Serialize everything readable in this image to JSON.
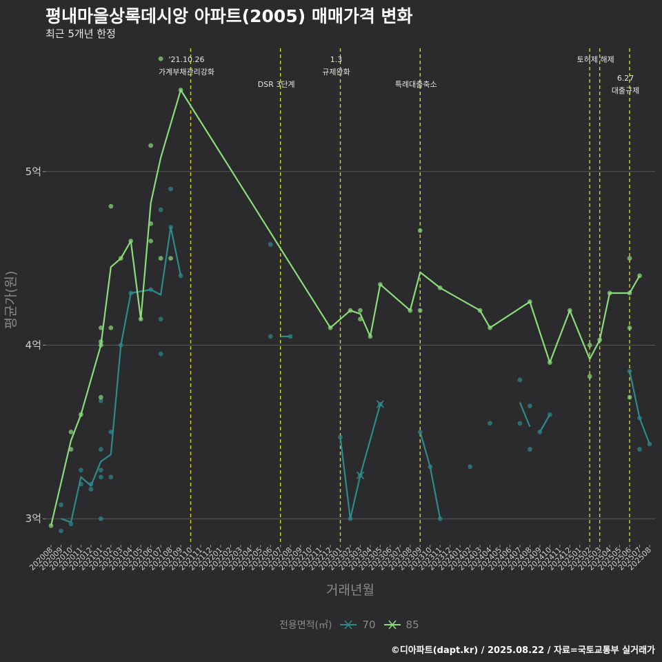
{
  "title": "평내마을상록데시앙 아파트(2005) 매매가격 변화",
  "subtitle": "최근 5개년 한정",
  "caption": "©디아파트(dapt.kr) / 2025.08.22 / 자료=국토교통부 실거래가",
  "legend": {
    "title": "전용면적(㎡)",
    "items": [
      "70",
      "85"
    ]
  },
  "colors": {
    "s70": "#2e8b8b",
    "s85": "#8cdc7c",
    "event": "#d6d61e",
    "grid": "#5a5a5a",
    "text": "#cfcfcf",
    "background": "#2b2a2c"
  },
  "chart_data": {
    "type": "line",
    "title": "평내마을상록데시앙 아파트(2005) 매매가격 변화",
    "subtitle": "최근 5개년 한정",
    "xlabel": "거래년월",
    "ylabel": "평균가(원)",
    "categories": [
      "202008",
      "202009",
      "202010",
      "202011",
      "202012",
      "202101",
      "202102",
      "202103",
      "202104",
      "202105",
      "202106",
      "202107",
      "202108",
      "202109",
      "202110",
      "202111",
      "202112",
      "202201",
      "202202",
      "202203",
      "202204",
      "202205",
      "202206",
      "202207",
      "202208",
      "202209",
      "202210",
      "202211",
      "202212",
      "202301",
      "202302",
      "202303",
      "202304",
      "202305",
      "202306",
      "202307",
      "202308",
      "202309",
      "202310",
      "202311",
      "202312",
      "202401",
      "202402",
      "202403",
      "202404",
      "202405",
      "202406",
      "202407",
      "202408",
      "202409",
      "202410",
      "202411",
      "202412",
      "202501",
      "202502",
      "202503",
      "202504",
      "202505",
      "202506",
      "202507",
      "202508"
    ],
    "ylim": [
      2.85,
      5.75
    ],
    "yticks": [
      3,
      4,
      5
    ],
    "ytick_labels": [
      "3억",
      "4억",
      "5억"
    ],
    "series": [
      {
        "name": "70",
        "segments": [
          [
            [
              "202009",
              3.0
            ],
            [
              "202010",
              2.98
            ],
            [
              "202011",
              3.24
            ],
            [
              "202012",
              3.19
            ],
            [
              "202101",
              3.33
            ],
            [
              "202102",
              3.37
            ],
            [
              "202103",
              4.0
            ],
            [
              "202104",
              4.3
            ],
            [
              "202106",
              4.32
            ],
            [
              "202107",
              4.29
            ],
            [
              "202108",
              4.68
            ],
            [
              "202109",
              4.4
            ]
          ],
          [
            [
              "202301",
              3.47
            ],
            [
              "202302",
              3.0
            ],
            [
              "202303",
              3.25
            ],
            [
              "202305",
              3.66
            ]
          ],
          [
            [
              "202309",
              3.5
            ],
            [
              "202310",
              3.3
            ],
            [
              "202311",
              3.0
            ]
          ],
          [
            [
              "202207",
              4.05
            ],
            [
              "202208",
              4.05
            ]
          ],
          [
            [
              "202407",
              3.67
            ],
            [
              "202408",
              3.53
            ]
          ],
          [
            [
              "202409",
              3.5
            ],
            [
              "202410",
              3.6
            ]
          ],
          [
            [
              "202506",
              3.85
            ],
            [
              "202507",
              3.58
            ],
            [
              "202508",
              3.43
            ]
          ]
        ],
        "points": [
          [
            "202009",
            2.93
          ],
          [
            "202009",
            3.08
          ],
          [
            "202010",
            2.97
          ],
          [
            "202011",
            3.28
          ],
          [
            "202011",
            3.2
          ],
          [
            "202012",
            3.17
          ],
          [
            "202012",
            3.2
          ],
          [
            "202101",
            3.0
          ],
          [
            "202101",
            3.24
          ],
          [
            "202101",
            3.28
          ],
          [
            "202101",
            3.4
          ],
          [
            "202101",
            3.68
          ],
          [
            "202102",
            3.5
          ],
          [
            "202102",
            3.24
          ],
          [
            "202103",
            4.0
          ],
          [
            "202104",
            4.3
          ],
          [
            "202106",
            4.32
          ],
          [
            "202107",
            3.95
          ],
          [
            "202107",
            4.15
          ],
          [
            "202107",
            4.78
          ],
          [
            "202108",
            4.9
          ],
          [
            "202108",
            4.68
          ],
          [
            "202109",
            4.4
          ],
          [
            "202206",
            4.58
          ],
          [
            "202206",
            4.05
          ],
          [
            "202208",
            4.05
          ],
          [
            "202301",
            3.47
          ],
          [
            "202302",
            3.0
          ],
          [
            "202303",
            3.25
          ],
          [
            "202305",
            3.66
          ],
          [
            "202309",
            3.5
          ],
          [
            "202310",
            3.3
          ],
          [
            "202311",
            3.0
          ],
          [
            "202402",
            3.3
          ],
          [
            "202404",
            3.55
          ],
          [
            "202407",
            3.8
          ],
          [
            "202407",
            3.55
          ],
          [
            "202408",
            3.65
          ],
          [
            "202408",
            3.4
          ],
          [
            "202409",
            3.5
          ],
          [
            "202410",
            3.6
          ],
          [
            "202506",
            3.85
          ],
          [
            "202507",
            3.58
          ],
          [
            "202507",
            3.4
          ],
          [
            "202508",
            3.43
          ]
        ],
        "markers": [
          [
            "202303",
            3.25
          ],
          [
            "202305",
            3.66
          ]
        ]
      },
      {
        "name": "85",
        "segments": [
          [
            [
              "202008",
              2.96
            ],
            [
              "202010",
              3.45
            ],
            [
              "202011",
              3.6
            ],
            [
              "202101",
              4.0
            ],
            [
              "202102",
              4.45
            ],
            [
              "202103",
              4.5
            ],
            [
              "202104",
              4.6
            ],
            [
              "202105",
              4.15
            ],
            [
              "202106",
              4.82
            ],
            [
              "202107",
              5.08
            ],
            [
              "202109",
              5.47
            ],
            [
              "202212",
              4.1
            ],
            [
              "202302",
              4.2
            ],
            [
              "202303",
              4.18
            ],
            [
              "202304",
              4.05
            ],
            [
              "202305",
              4.35
            ],
            [
              "202308",
              4.2
            ],
            [
              "202309",
              4.42
            ],
            [
              "202311",
              4.33
            ],
            [
              "202403",
              4.2
            ],
            [
              "202404",
              4.1
            ],
            [
              "202408",
              4.25
            ],
            [
              "202410",
              3.9
            ],
            [
              "202412",
              4.2
            ],
            [
              "202502",
              3.92
            ],
            [
              "202503",
              4.03
            ],
            [
              "202504",
              4.3
            ],
            [
              "202506",
              4.3
            ],
            [
              "202507",
              4.4
            ]
          ]
        ],
        "points": [
          [
            "202008",
            2.96
          ],
          [
            "202010",
            3.5
          ],
          [
            "202010",
            3.4
          ],
          [
            "202011",
            3.6
          ],
          [
            "202101",
            4.1
          ],
          [
            "202101",
            4.02
          ],
          [
            "202101",
            4.0
          ],
          [
            "202101",
            3.7
          ],
          [
            "202102",
            4.8
          ],
          [
            "202102",
            4.1
          ],
          [
            "202103",
            4.5
          ],
          [
            "202104",
            4.6
          ],
          [
            "202105",
            4.15
          ],
          [
            "202106",
            5.15
          ],
          [
            "202106",
            4.7
          ],
          [
            "202106",
            4.6
          ],
          [
            "202107",
            5.65
          ],
          [
            "202107",
            4.5
          ],
          [
            "202108",
            4.5
          ],
          [
            "202109",
            5.47
          ],
          [
            "202212",
            4.1
          ],
          [
            "202302",
            4.2
          ],
          [
            "202303",
            4.2
          ],
          [
            "202303",
            4.15
          ],
          [
            "202304",
            4.05
          ],
          [
            "202305",
            4.35
          ],
          [
            "202308",
            4.2
          ],
          [
            "202309",
            4.66
          ],
          [
            "202309",
            4.2
          ],
          [
            "202311",
            4.33
          ],
          [
            "202403",
            4.2
          ],
          [
            "202404",
            4.1
          ],
          [
            "202408",
            4.25
          ],
          [
            "202410",
            3.9
          ],
          [
            "202412",
            4.2
          ],
          [
            "202502",
            4.0
          ],
          [
            "202502",
            3.82
          ],
          [
            "202503",
            4.03
          ],
          [
            "202504",
            4.3
          ],
          [
            "202506",
            4.5
          ],
          [
            "202506",
            4.3
          ],
          [
            "202506",
            4.1
          ],
          [
            "202506",
            3.7
          ],
          [
            "202507",
            4.4
          ]
        ]
      }
    ],
    "events": [
      {
        "month": "202110",
        "lines": [
          "'21.10.26",
          "가계부채관리강화"
        ],
        "row": 0
      },
      {
        "month": "202207",
        "lines": [
          "DSR 3단계"
        ],
        "row": 1
      },
      {
        "month": "202301",
        "lines": [
          "1.3",
          "규제완화"
        ],
        "row": 0
      },
      {
        "month": "202309",
        "lines": [
          "특례대출축소"
        ],
        "row": 1
      },
      {
        "month": "202502",
        "lines": [
          ""
        ],
        "row": 0
      },
      {
        "month": "202503",
        "lines": [
          "토허제 해제"
        ],
        "row": 0
      },
      {
        "month": "202506",
        "lines": [
          "6.27",
          "대출규제"
        ],
        "row": 2
      }
    ]
  }
}
